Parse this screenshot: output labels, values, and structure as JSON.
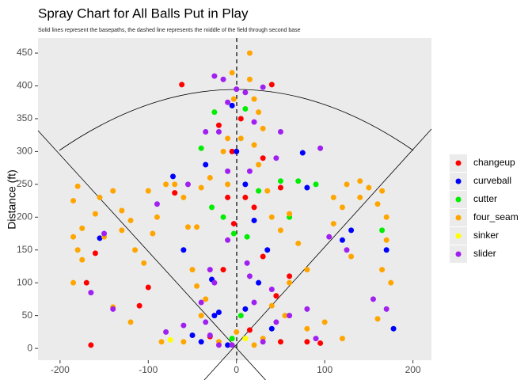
{
  "chart_data": {
    "type": "scatter",
    "title": "Spray Chart for All Balls Put in Play",
    "subtitle": "Solid lines represent the basepaths, the dashed line represents the middle of the field through second base",
    "y_label": "Distance (ft)",
    "xlim": [
      -225,
      221
    ],
    "ylim": [
      -18,
      473
    ],
    "xticks": [
      -200,
      -100,
      0,
      100,
      200
    ],
    "yticks": [
      0,
      50,
      100,
      150,
      200,
      250,
      300,
      350,
      400,
      450
    ],
    "grid": false,
    "legend": "right",
    "series": [
      {
        "name": "changeup",
        "color": "#ff0000",
        "x": [
          -62,
          40,
          -165,
          -170,
          -160,
          -110,
          -100,
          -70,
          -5,
          10,
          20,
          -10,
          30,
          45,
          50,
          80,
          95,
          -30,
          15,
          5,
          -20,
          30,
          -15,
          50,
          -3,
          60
        ],
        "values": [
          402,
          402,
          5,
          100,
          145,
          65,
          93,
          237,
          300,
          230,
          215,
          230,
          140,
          80,
          10,
          10,
          8,
          18,
          28,
          350,
          340,
          290,
          120,
          245,
          190,
          110
        ]
      },
      {
        "name": "curveball",
        "color": "#0000ff",
        "x": [
          -72,
          -155,
          -35,
          -20,
          -25,
          0,
          -10,
          -40,
          10,
          -60,
          20,
          120,
          130,
          170,
          178,
          75,
          80,
          -5,
          25,
          40,
          -50,
          10,
          35,
          -28
        ],
        "values": [
          262,
          168,
          280,
          55,
          50,
          300,
          5,
          10,
          250,
          150,
          195,
          165,
          180,
          150,
          30,
          298,
          245,
          370,
          100,
          30,
          20,
          60,
          150,
          105
        ]
      },
      {
        "name": "cutter",
        "color": "#00ee00",
        "x": [
          10,
          -25,
          -40,
          -28,
          -3,
          12,
          25,
          50,
          70,
          90,
          165,
          -15,
          -5,
          5,
          60
        ],
        "values": [
          365,
          360,
          305,
          215,
          175,
          170,
          240,
          255,
          255,
          250,
          180,
          200,
          15,
          50,
          200
        ]
      },
      {
        "name": "four_seam",
        "color": "#ffa500",
        "x": [
          -180,
          -185,
          -175,
          -180,
          -175,
          -160,
          -155,
          -140,
          -130,
          -130,
          -120,
          -115,
          -105,
          -95,
          -90,
          -80,
          -70,
          -60,
          -55,
          -45,
          -50,
          -45,
          -35,
          -40,
          -60,
          -85,
          -120,
          -40,
          -30,
          -10,
          -5,
          -15,
          -10,
          5,
          15,
          15,
          20,
          25,
          20,
          25,
          35,
          40,
          50,
          60,
          70,
          80,
          60,
          40,
          55,
          80,
          100,
          120,
          30,
          20,
          0,
          -20,
          110,
          120,
          140,
          150,
          160,
          165,
          170,
          170,
          165,
          175,
          -185,
          -185,
          -140,
          -150,
          -100,
          30,
          -3,
          110,
          125,
          140,
          130,
          160
        ],
        "values": [
          247,
          225,
          183,
          150,
          135,
          205,
          230,
          240,
          210,
          180,
          195,
          150,
          130,
          175,
          200,
          250,
          250,
          230,
          185,
          185,
          120,
          95,
          75,
          50,
          10,
          10,
          40,
          245,
          260,
          250,
          420,
          300,
          320,
          320,
          450,
          410,
          380,
          360,
          310,
          280,
          240,
          200,
          180,
          205,
          160,
          120,
          100,
          65,
          50,
          30,
          40,
          15,
          15,
          5,
          25,
          10,
          230,
          215,
          230,
          245,
          220,
          240,
          200,
          165,
          120,
          100,
          100,
          170,
          63,
          170,
          240,
          335,
          380,
          190,
          250,
          255,
          140,
          45
        ]
      },
      {
        "name": "sinker",
        "color": "#ffff00",
        "x": [
          -75,
          10
        ],
        "values": [
          13,
          15
        ]
      },
      {
        "name": "slider",
        "color": "#a020f0",
        "x": [
          -25,
          0,
          -15,
          -10,
          20,
          30,
          10,
          -35,
          -20,
          15,
          -10,
          -30,
          -25,
          -40,
          -35,
          -30,
          -60,
          -80,
          -140,
          -165,
          -150,
          -90,
          -55,
          -10,
          15,
          20,
          40,
          45,
          60,
          80,
          90,
          105,
          155,
          170,
          125,
          -20,
          -5,
          95,
          50,
          30,
          45,
          12
        ],
        "values": [
          415,
          395,
          410,
          375,
          345,
          398,
          390,
          330,
          330,
          270,
          270,
          120,
          100,
          70,
          40,
          20,
          35,
          25,
          60,
          85,
          175,
          220,
          250,
          165,
          110,
          70,
          90,
          40,
          50,
          60,
          15,
          170,
          75,
          60,
          150,
          5,
          5,
          305,
          330,
          10,
          290,
          130
        ]
      }
    ]
  }
}
